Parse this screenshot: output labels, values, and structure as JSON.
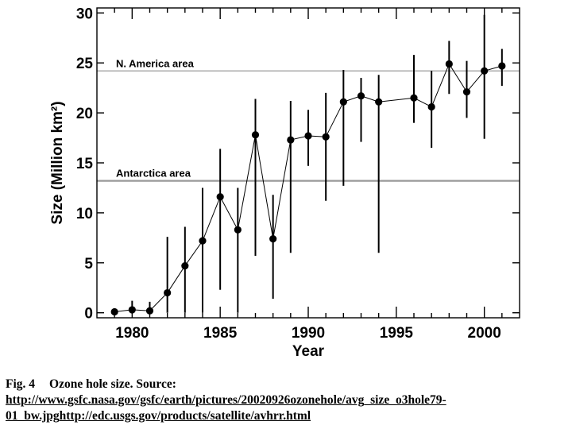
{
  "chart_data": {
    "type": "scatter",
    "x": [
      1979,
      1980,
      1981,
      1982,
      1983,
      1984,
      1985,
      1986,
      1987,
      1988,
      1989,
      1990,
      1991,
      1992,
      1993,
      1994,
      1996,
      1997,
      1998,
      1999,
      2000,
      2001
    ],
    "series": [
      {
        "values": [
          0.1,
          0.3,
          0.2,
          2.0,
          4.7,
          7.2,
          11.6,
          8.3,
          17.8,
          7.4,
          17.3,
          17.7,
          17.6,
          21.1,
          21.7,
          21.1,
          21.5,
          20.6,
          24.9,
          22.1,
          24.2,
          24.7
        ],
        "error_low": [
          0.0,
          0.0,
          0.0,
          0.0,
          0.0,
          0.0,
          2.3,
          0.0,
          5.7,
          1.4,
          6.0,
          14.7,
          11.2,
          12.7,
          17.1,
          6.0,
          19.0,
          16.5,
          21.9,
          19.5,
          17.4,
          22.7
        ],
        "error_high": [
          0.0,
          1.2,
          1.1,
          7.6,
          8.6,
          12.5,
          16.4,
          12.5,
          21.4,
          11.8,
          21.2,
          20.3,
          22.0,
          24.3,
          23.5,
          23.8,
          25.8,
          24.2,
          27.2,
          25.2,
          29.8,
          26.4
        ]
      }
    ],
    "reference_lines": [
      {
        "label": "N. America area",
        "y": 24.2
      },
      {
        "label": "Antarctica area",
        "y": 13.2
      }
    ],
    "xlim": [
      1978,
      2002
    ],
    "ylim": [
      -0.5,
      30.5
    ],
    "xticks": [
      1980,
      1985,
      1990,
      1995,
      2000
    ],
    "yticks": [
      0,
      5,
      10,
      15,
      20,
      25,
      30
    ],
    "xlabel": "Year",
    "ylabel": "Size (Million km²)",
    "grid": false,
    "colors": {
      "points": "#000000",
      "reference_line": "#999999"
    }
  },
  "caption": {
    "label": "Fig. 4",
    "text": "Ozone hole size. Source:",
    "link1": "http://www.gsfc.nasa.gov/gsfc/earth/pictures/20020926ozonehole/avg_size_o3hole79-01_bw.jpg",
    "link2": "http://edc.usgs.gov/products/satellite/avhrr.html"
  }
}
